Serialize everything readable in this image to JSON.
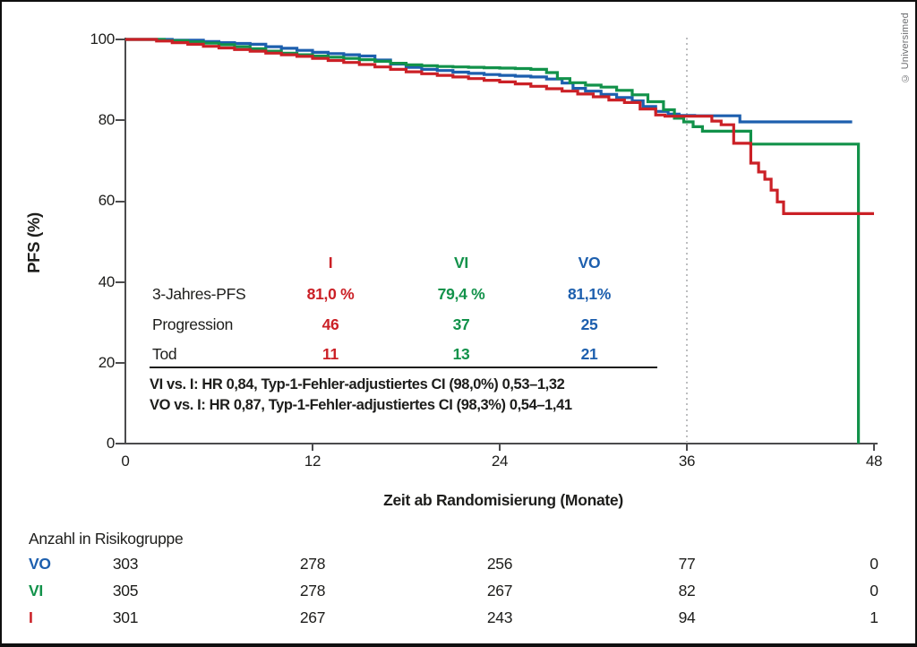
{
  "credit": "© Universimed",
  "colors": {
    "i_red": "#cb2026",
    "vi_green": "#12924a",
    "vo_blue": "#1d5fae",
    "axis_gray": "#4b4b4d",
    "dashed_gray": "#a7a9ac",
    "text_black": "#1d1d1b"
  },
  "chart_data": {
    "type": "line",
    "subtype": "kaplan-meier-step",
    "title": "",
    "xlabel": "Zeit ab Randomisierung (Monate)",
    "ylabel": "PFS (%)",
    "xlim": [
      0,
      48
    ],
    "ylim": [
      0,
      100
    ],
    "xticks": [
      "0",
      "12",
      "24",
      "36",
      "48"
    ],
    "xtick_values": [
      0,
      12,
      24,
      36,
      48
    ],
    "yticks": [
      "100",
      "80",
      "60",
      "40",
      "20",
      "0"
    ],
    "ytick_values": [
      100,
      80,
      60,
      40,
      20,
      0
    ],
    "grid": false,
    "dashed_vline_x": 36,
    "series": [
      {
        "name": "VO",
        "color": "#1d5fae",
        "points": [
          [
            0,
            100
          ],
          [
            3,
            99.8
          ],
          [
            5,
            99.5
          ],
          [
            6,
            99.2
          ],
          [
            7,
            99
          ],
          [
            8,
            98.8
          ],
          [
            9,
            98.2
          ],
          [
            10,
            97.8
          ],
          [
            11,
            97.3
          ],
          [
            12,
            96.8
          ],
          [
            13,
            96.5
          ],
          [
            14,
            96.2
          ],
          [
            15,
            95.9
          ],
          [
            16,
            94.9
          ],
          [
            17,
            93.9
          ],
          [
            18,
            93.1
          ],
          [
            19,
            92.6
          ],
          [
            20,
            92.3
          ],
          [
            21,
            91.9
          ],
          [
            22,
            91.6
          ],
          [
            23,
            91.3
          ],
          [
            24,
            91.1
          ],
          [
            25,
            90.9
          ],
          [
            26,
            90.7
          ],
          [
            27,
            90.2
          ],
          [
            28,
            89.2
          ],
          [
            28.7,
            87.9
          ],
          [
            29.5,
            87.2
          ],
          [
            30.5,
            86.4
          ],
          [
            31.5,
            85.6
          ],
          [
            32.5,
            84.8
          ],
          [
            33.2,
            83.4
          ],
          [
            34,
            82.2
          ],
          [
            34.8,
            81.5
          ],
          [
            35.5,
            81.2
          ],
          [
            36.5,
            81.1
          ],
          [
            39.4,
            79.6
          ],
          [
            46.6,
            79.6
          ]
        ]
      },
      {
        "name": "VI",
        "color": "#12924a",
        "points": [
          [
            0,
            100
          ],
          [
            2.5,
            99.7
          ],
          [
            4,
            99.4
          ],
          [
            5,
            99.1
          ],
          [
            6,
            98.7
          ],
          [
            7,
            98.2
          ],
          [
            8,
            97.7
          ],
          [
            9,
            97.1
          ],
          [
            10,
            96.6
          ],
          [
            11,
            96.2
          ],
          [
            12,
            95.9
          ],
          [
            13,
            95.6
          ],
          [
            14,
            95.3
          ],
          [
            15,
            95
          ],
          [
            16,
            94.6
          ],
          [
            17,
            94.1
          ],
          [
            18,
            93.7
          ],
          [
            19,
            93.5
          ],
          [
            20,
            93.3
          ],
          [
            21,
            93.2
          ],
          [
            22,
            93.1
          ],
          [
            23,
            93
          ],
          [
            24,
            92.9
          ],
          [
            25,
            92.8
          ],
          [
            26,
            92.6
          ],
          [
            27,
            91.8
          ],
          [
            27.7,
            90.3
          ],
          [
            28.5,
            89.3
          ],
          [
            29.5,
            88.7
          ],
          [
            30.5,
            88.2
          ],
          [
            31.5,
            87.4
          ],
          [
            32.5,
            86.3
          ],
          [
            33.5,
            84.6
          ],
          [
            34.5,
            82.6
          ],
          [
            35.2,
            80.5
          ],
          [
            35.8,
            79.6
          ],
          [
            36.4,
            78.4
          ],
          [
            37,
            77.3
          ],
          [
            40.1,
            74.1
          ],
          [
            47,
            74.1
          ],
          [
            47,
            0
          ]
        ]
      },
      {
        "name": "I",
        "color": "#cb2026",
        "points": [
          [
            0,
            100
          ],
          [
            2,
            99.6
          ],
          [
            3,
            99.2
          ],
          [
            4,
            98.8
          ],
          [
            5,
            98.3
          ],
          [
            6,
            97.9
          ],
          [
            7,
            97.5
          ],
          [
            8,
            97.1
          ],
          [
            9,
            96.6
          ],
          [
            10,
            96.2
          ],
          [
            11,
            95.8
          ],
          [
            12,
            95.3
          ],
          [
            13,
            94.8
          ],
          [
            14,
            94.3
          ],
          [
            15,
            93.8
          ],
          [
            16,
            93.2
          ],
          [
            17,
            92.6
          ],
          [
            18,
            92
          ],
          [
            19,
            91.5
          ],
          [
            20,
            91.1
          ],
          [
            21,
            90.7
          ],
          [
            22,
            90.3
          ],
          [
            23,
            89.9
          ],
          [
            24,
            89.5
          ],
          [
            25,
            89
          ],
          [
            26,
            88.4
          ],
          [
            27,
            87.8
          ],
          [
            28,
            87.2
          ],
          [
            29,
            86.5
          ],
          [
            30,
            85.8
          ],
          [
            31,
            85
          ],
          [
            32,
            84.4
          ],
          [
            33,
            82.8
          ],
          [
            34,
            81.3
          ],
          [
            34.6,
            81
          ],
          [
            37.6,
            79.8
          ],
          [
            38.2,
            78.9
          ],
          [
            39,
            74.3
          ],
          [
            40.1,
            69.4
          ],
          [
            40.6,
            67.2
          ],
          [
            41,
            65.4
          ],
          [
            41.4,
            62.7
          ],
          [
            41.8,
            59.8
          ],
          [
            42.2,
            56.9
          ],
          [
            48,
            56.9
          ]
        ]
      }
    ]
  },
  "stats_table": {
    "col_headers": [
      {
        "label": "I",
        "color": "#cb2026"
      },
      {
        "label": "VI",
        "color": "#12924a"
      },
      {
        "label": "VO",
        "color": "#1d5fae"
      }
    ],
    "rows": [
      {
        "label": "3-Jahres-PFS",
        "values": [
          "81,0 %",
          "79,4 %",
          "81,1%"
        ]
      },
      {
        "label": "Progression",
        "values": [
          "46",
          "37",
          "25"
        ]
      },
      {
        "label": "Tod",
        "values": [
          "11",
          "13",
          "21"
        ]
      }
    ],
    "hr_lines": [
      "VI vs. I: HR 0,84, Typ-1-Fehler-adjustiertes CI (98,0%) 0,53–1,32",
      "VO vs. I: HR 0,87, Typ-1-Fehler-adjustiertes CI (98,3%) 0,54–1,41"
    ]
  },
  "risk_table": {
    "title": "Anzahl in Risikogruppe",
    "times": [
      0,
      12,
      24,
      36,
      48
    ],
    "rows": [
      {
        "label": "VO",
        "color": "#1d5fae",
        "values": [
          "303",
          "278",
          "256",
          "77",
          "0"
        ]
      },
      {
        "label": "VI",
        "color": "#12924a",
        "values": [
          "305",
          "278",
          "267",
          "82",
          "0"
        ]
      },
      {
        "label": "I",
        "color": "#cb2026",
        "values": [
          "301",
          "267",
          "243",
          "94",
          "1"
        ]
      }
    ]
  }
}
